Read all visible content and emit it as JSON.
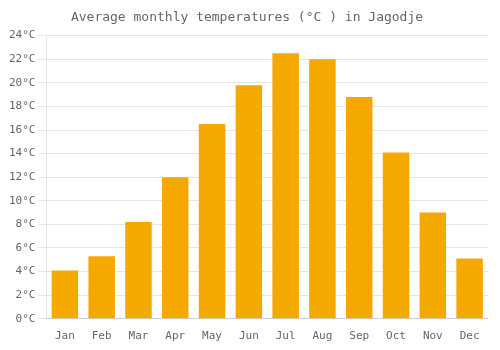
{
  "chart_data": {
    "type": "bar",
    "title": "Average monthly temperatures (°C ) in Jagodje",
    "categories": [
      "Jan",
      "Feb",
      "Mar",
      "Apr",
      "May",
      "Jun",
      "Jul",
      "Aug",
      "Sep",
      "Oct",
      "Nov",
      "Dec"
    ],
    "values": [
      4.1,
      5.3,
      8.2,
      12.0,
      16.5,
      19.8,
      22.5,
      22.0,
      18.8,
      14.1,
      9.0,
      5.1
    ],
    "color": "#F5A800",
    "ylim": [
      0,
      24
    ],
    "yticks": [
      {
        "value": 0,
        "label": "0°C"
      },
      {
        "value": 2,
        "label": "2°C"
      },
      {
        "value": 4,
        "label": "4°C"
      },
      {
        "value": 6,
        "label": "6°C"
      },
      {
        "value": 8,
        "label": "8°C"
      },
      {
        "value": 10,
        "label": "10°C"
      },
      {
        "value": 12,
        "label": "12°C"
      },
      {
        "value": 14,
        "label": "14°C"
      },
      {
        "value": 16,
        "label": "16°C"
      },
      {
        "value": 18,
        "label": "18°C"
      },
      {
        "value": 20,
        "label": "20°C"
      },
      {
        "value": 22,
        "label": "22°C"
      },
      {
        "value": 24,
        "label": "24°C"
      }
    ],
    "grid": true
  }
}
